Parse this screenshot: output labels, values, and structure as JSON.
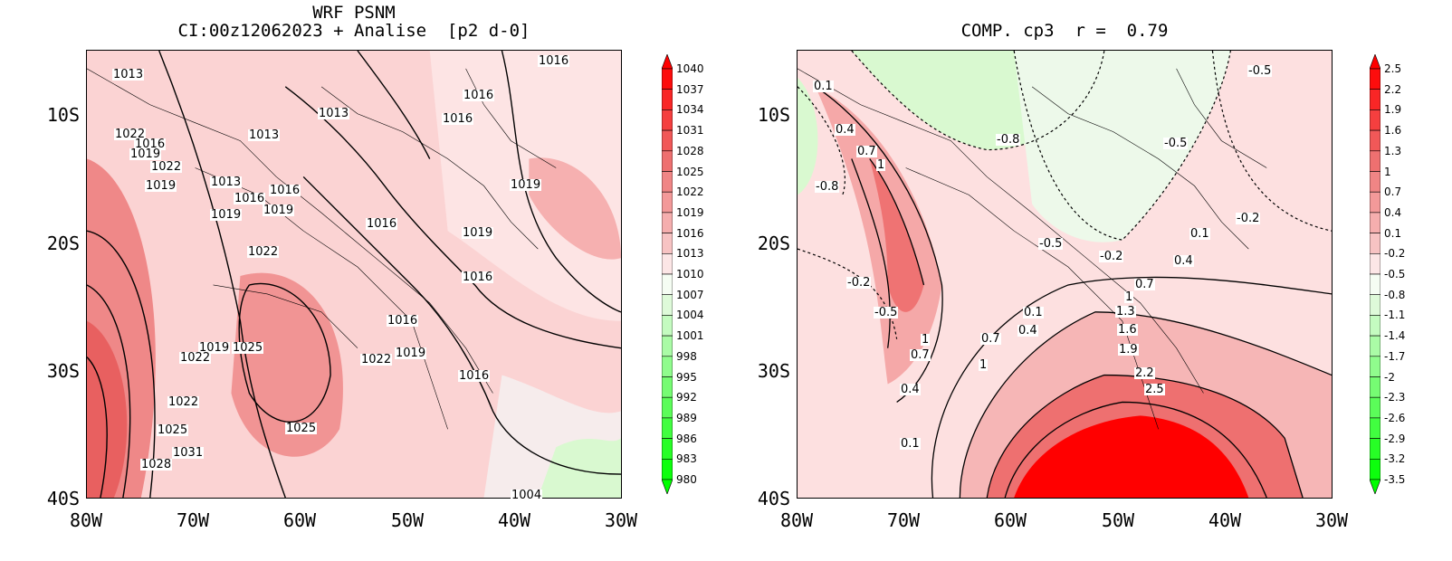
{
  "left_panel": {
    "title_line1": "WRF PSNM",
    "title_line2": "CI:00z12062023 + Analise  [p2 d-0]",
    "lat_ticks": [
      "10S",
      "20S",
      "30S",
      "40S"
    ],
    "lon_ticks": [
      "80W",
      "70W",
      "60W",
      "50W",
      "40W",
      "30W"
    ],
    "colorbar": [
      "1040",
      "1037",
      "1034",
      "1031",
      "1028",
      "1025",
      "1022",
      "1019",
      "1016",
      "1013",
      "1010",
      "1007",
      "1004",
      "1001",
      "998",
      "995",
      "992",
      "989",
      "986",
      "983",
      "980"
    ],
    "contour_labels": [
      "1013",
      "1016",
      "1016",
      "1016",
      "1013",
      "1013",
      "1022",
      "1016",
      "1019",
      "1022",
      "1019",
      "1013",
      "1016",
      "1019",
      "1019",
      "1019",
      "1019",
      "1016",
      "1016",
      "1022",
      "1016",
      "1016",
      "1019",
      "1025",
      "1022",
      "1019",
      "1022",
      "1016",
      "1022",
      "1025",
      "1025",
      "1031",
      "1028",
      "1004"
    ]
  },
  "right_panel": {
    "title": "COMP. cp3  r =  0.79",
    "lat_ticks": [
      "10S",
      "20S",
      "30S",
      "40S"
    ],
    "lon_ticks": [
      "80W",
      "70W",
      "60W",
      "50W",
      "40W",
      "30W"
    ],
    "colorbar": [
      "2.5",
      "2.2",
      "1.9",
      "1.6",
      "1.3",
      "1",
      "0.7",
      "0.4",
      "0.1",
      "-0.2",
      "-0.5",
      "-0.8",
      "-1.1",
      "-1.4",
      "-1.7",
      "-2",
      "-2.3",
      "-2.6",
      "-2.9",
      "-3.2",
      "-3.5"
    ],
    "contour_labels": [
      "0.1",
      "0.4",
      "0.7",
      "1",
      "-0.8",
      "-0.8",
      "-0.5",
      "-0.5",
      "-0.5",
      "-0.2",
      "0.1",
      "-0.2",
      "-0.2",
      "-0.5",
      "0.4",
      "0.7",
      "1",
      "0.1",
      "0.4",
      "1.3",
      "0.7",
      "1.6",
      "1",
      "1.9",
      "0.7",
      "2.2",
      "1",
      "2.5",
      "0.4",
      "0.1"
    ]
  },
  "colors": {
    "max_red": "#ff0000",
    "mid_red": "#f07070",
    "light_pink": "#fbd7d7",
    "light_green": "#d9f9d0",
    "max_green": "#00ff00"
  }
}
